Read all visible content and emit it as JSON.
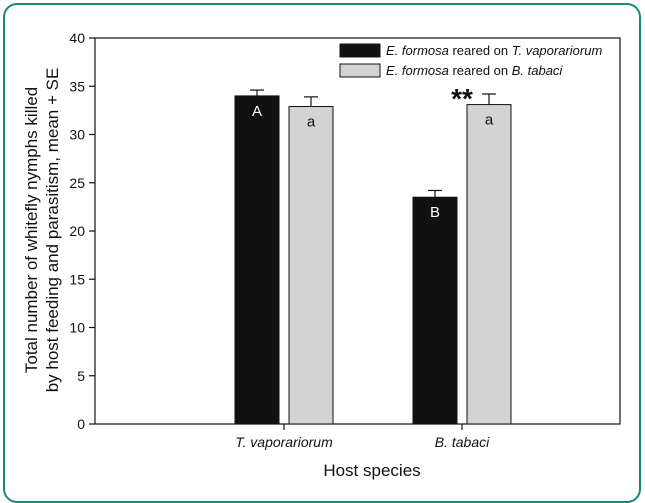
{
  "chart_data": {
    "type": "bar",
    "categories": [
      "T. vaporariorum",
      "B. tabaci"
    ],
    "series": [
      {
        "name_italic": "E. formosa",
        "name_mid": " reared on ",
        "name_italic2": "T. vaporariorum",
        "values": [
          34.0,
          23.5
        ],
        "errors": [
          0.6,
          0.7
        ],
        "labels": [
          "A",
          "B"
        ],
        "color": "#111111"
      },
      {
        "name_italic": "E. formosa",
        "name_mid": " reared on ",
        "name_italic2": "B. tabaci",
        "values": [
          32.9,
          33.1
        ],
        "errors": [
          1.0,
          1.1
        ],
        "labels": [
          "a",
          "a"
        ],
        "color": "#d3d3d3"
      }
    ],
    "ylim": [
      0,
      40
    ],
    "yticks": [
      0,
      5,
      10,
      15,
      20,
      25,
      30,
      35,
      40
    ],
    "ylabel_line1": "Total number of whitefly nymphs killed",
    "ylabel_line2": "by host feeding and parasitism, mean + SE",
    "xlabel": "Host species",
    "annotation": "**",
    "legend_position": "top-right",
    "grid": false
  }
}
